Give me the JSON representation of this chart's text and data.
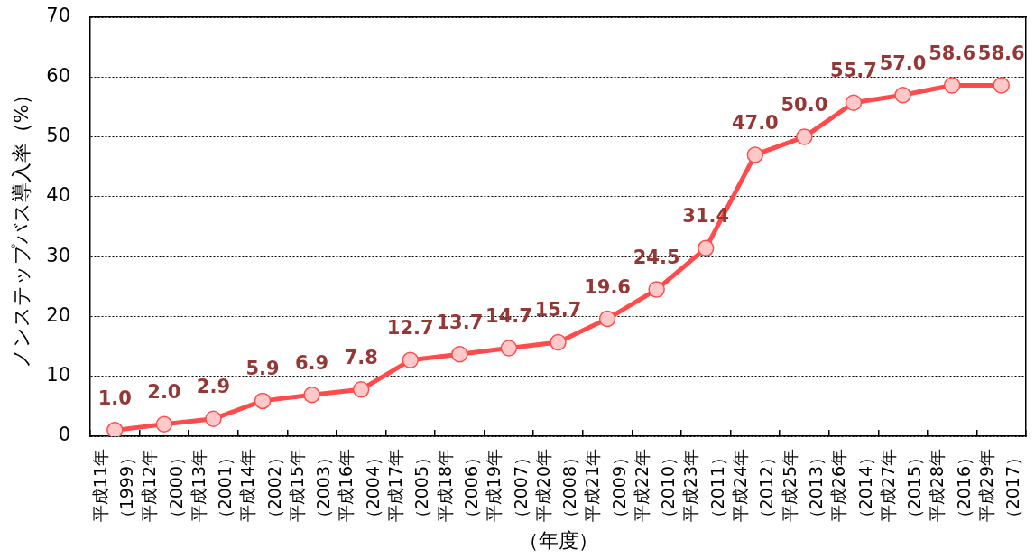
{
  "chart_data": {
    "type": "line",
    "xlabel": "（年度）",
    "ylabel": "ノンステップバス導入率（%）",
    "categories": [
      "平成11年（1999）",
      "平成12年（2000）",
      "平成13年（2001）",
      "平成14年（2002）",
      "平成15年（2003）",
      "平成16年（2004）",
      "平成17年（2005）",
      "平成18年（2006）",
      "平成19年（2007）",
      "平成20年（2008）",
      "平成21年（2009）",
      "平成22年（2010）",
      "平成23年（2011）",
      "平成24年（2012）",
      "平成25年（2013）",
      "平成26年（2014）",
      "平成27年（2015）",
      "平成28年（2016）",
      "平成29年（2017）"
    ],
    "series": [
      {
        "color": "#ff4b4b",
        "values": [
          1.0,
          2.0,
          2.9,
          5.9,
          6.9,
          7.8,
          12.7,
          13.7,
          14.7,
          15.7,
          19.6,
          24.5,
          31.4,
          47.0,
          50.0,
          55.7,
          57.0,
          58.6,
          58.6
        ],
        "value_labels": [
          "1.0",
          "2.0",
          "2.9",
          "5.9",
          "6.9",
          "7.8",
          "12.7",
          "13.7",
          "14.7",
          "15.7",
          "19.6",
          "24.5",
          "31.4",
          "47.0",
          "50.0",
          "55.7",
          "57.0",
          "58.6",
          "58.6"
        ]
      }
    ],
    "ylim": [
      0,
      70
    ],
    "yticks": [
      0,
      10,
      20,
      30,
      40,
      50,
      60,
      70
    ],
    "grid": "y",
    "legend": false,
    "marker": "circle",
    "line_style": "solid"
  }
}
